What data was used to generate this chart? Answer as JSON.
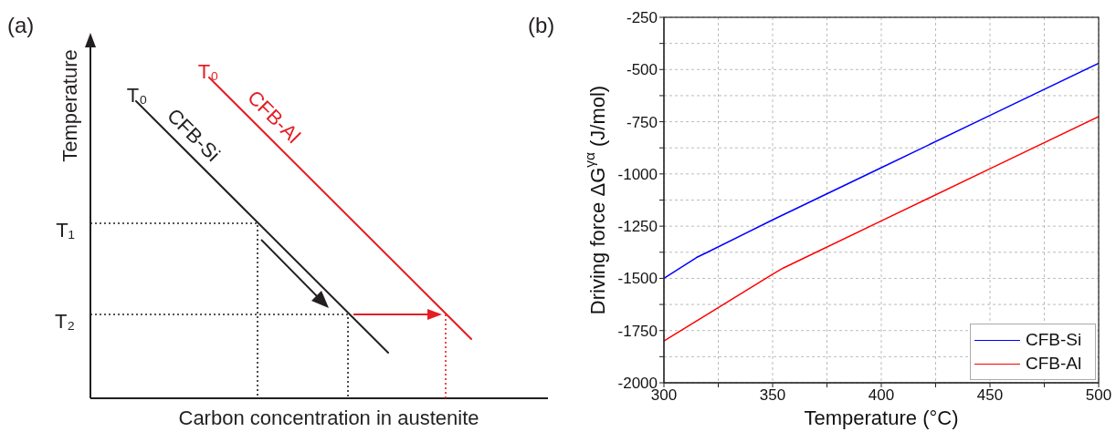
{
  "chart_data": [
    {
      "type": "other",
      "title": "(a)",
      "xlabel": "Carbon concentration in austenite",
      "ylabel": "Temperature",
      "annotations": [
        "T₀",
        "T₀",
        "T₁",
        "T₂",
        "CFB-Si",
        "CFB-Al"
      ]
    },
    {
      "type": "line",
      "title": "(b)",
      "xlabel": "Temperature (°C)",
      "ylabel": "Driving force ΔG$^{γα}$  (J/mol)",
      "marker": "none",
      "legend": "bottom right",
      "grid": true,
      "xlim": [
        300,
        500
      ],
      "xticks": [
        300,
        {
          "value": 325,
          "label": null
        },
        350,
        {
          "value": 375,
          "label": null
        },
        400,
        {
          "value": 425,
          "label": null
        },
        450,
        {
          "value": 475,
          "label": null
        },
        500
      ],
      "ylim": [
        -2000,
        -250
      ],
      "yticks": [
        -2000,
        {
          "value": -1875,
          "label": null
        },
        -1750,
        {
          "value": -1625,
          "label": null
        },
        -1500,
        {
          "value": -1375,
          "label": null
        },
        -1250,
        {
          "value": -1125,
          "label": null
        },
        -1000,
        {
          "value": -875,
          "label": null
        },
        -750,
        {
          "value": -625,
          "label": null
        },
        -500,
        {
          "value": -375,
          "label": null
        },
        -250
      ],
      "series": [
        {
          "name": "CFB-Si",
          "color": "#0000ff",
          "x": [
            300,
            315,
            320,
            350,
            400,
            450,
            500
          ],
          "values": [
            -1500,
            -1400,
            -1375,
            -1220,
            -970,
            -720,
            -470
          ]
        },
        {
          "name": "CFB-Al",
          "color": "#ff0000",
          "x": [
            300,
            350,
            355,
            400,
            450,
            500
          ],
          "values": [
            -1800,
            -1480,
            -1450,
            -1225,
            -975,
            -725
          ]
        }
      ]
    }
  ]
}
